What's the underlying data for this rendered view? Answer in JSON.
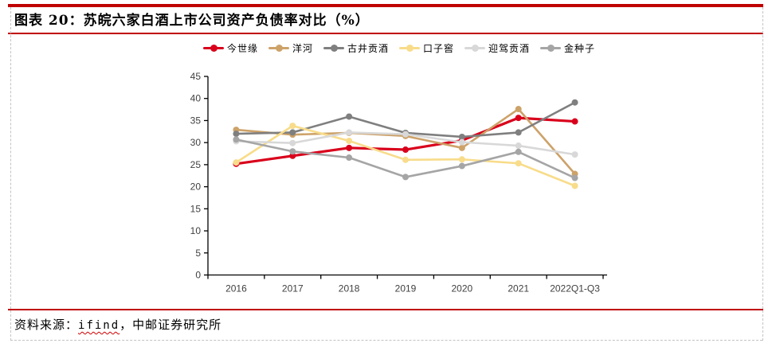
{
  "header": {
    "title": "图表 20：苏皖六家白酒上市公司资产负债率对比（%）"
  },
  "footer": {
    "source_prefix": "资料来源：",
    "source_tool": "ifind",
    "source_suffix": "，中邮证券研究所"
  },
  "colors": {
    "accent_red": "#c00000",
    "dashed_border": "#c3c3c3",
    "axis": "#000000",
    "axis_label": "#3f3f3f"
  },
  "chart_data": {
    "type": "line",
    "title": "苏皖六家白酒上市公司资产负债率对比（%）",
    "categories": [
      "2016",
      "2017",
      "2018",
      "2019",
      "2020",
      "2021",
      "2022Q1-Q3"
    ],
    "series": [
      {
        "name": "今世缘",
        "color": "#d9001b",
        "values": [
          25.2,
          27.0,
          28.8,
          28.4,
          30.5,
          35.6,
          34.8
        ]
      },
      {
        "name": "洋河",
        "color": "#cda269",
        "values": [
          32.9,
          31.8,
          32.2,
          31.5,
          28.8,
          37.6,
          22.9
        ]
      },
      {
        "name": "古井贡酒",
        "color": "#7f7f7f",
        "values": [
          32.0,
          32.3,
          35.9,
          32.2,
          31.3,
          32.3,
          39.1
        ]
      },
      {
        "name": "口子窖",
        "color": "#f8dc8a",
        "values": [
          25.5,
          33.8,
          30.4,
          26.1,
          26.2,
          25.3,
          20.2
        ]
      },
      {
        "name": "迎驾贡酒",
        "color": "#d8d8d8",
        "values": [
          30.3,
          29.9,
          32.3,
          31.9,
          30.1,
          29.3,
          27.3
        ]
      },
      {
        "name": "金种子",
        "color": "#a5a5a5",
        "values": [
          30.7,
          28.0,
          26.6,
          22.2,
          24.7,
          27.9,
          22.0
        ]
      }
    ],
    "xlabel": "",
    "ylabel": "",
    "ylim": [
      0,
      45
    ],
    "ytick_step": 5,
    "grid": false,
    "legend_position": "top"
  }
}
